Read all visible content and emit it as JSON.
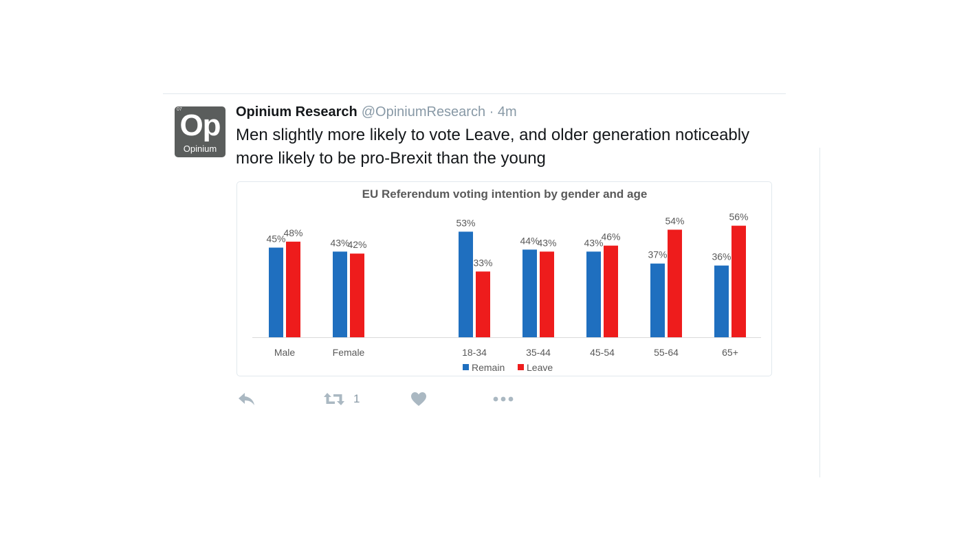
{
  "tweet": {
    "avatar": {
      "number": "07",
      "symbol": "Op",
      "name": "Opinium"
    },
    "display_name": "Opinium Research",
    "handle": "@OpiniumResearch",
    "separator": "·",
    "time": "4m",
    "text": "Men slightly more likely to vote Leave, and older generation noticeably more likely to be pro-Brexit than the young"
  },
  "actions": {
    "reply_icon": "reply-icon",
    "retweet_icon": "retweet-icon",
    "retweet_count": "1",
    "like_icon": "heart-icon",
    "more_icon": "more-icon"
  },
  "chart_data": {
    "type": "bar",
    "title": "EU Referendum voting intention by gender and age",
    "categories": [
      "Male",
      "Female",
      "18-34",
      "35-44",
      "45-54",
      "55-64",
      "65+"
    ],
    "series": [
      {
        "name": "Remain",
        "values": [
          45,
          43,
          53,
          44,
          43,
          37,
          36
        ],
        "labels": [
          "45%",
          "43%",
          "53%",
          "44%",
          "43%",
          "37%",
          "36%"
        ],
        "color": "#1f6fbf"
      },
      {
        "name": "Leave",
        "values": [
          48,
          42,
          33,
          43,
          46,
          54,
          56
        ],
        "labels": [
          "48%",
          "42%",
          "33%",
          "43%",
          "46%",
          "54%",
          "56%"
        ],
        "color": "#ee1c1c"
      }
    ],
    "ylim": [
      0,
      60
    ],
    "grid": false,
    "legend": "bottom"
  }
}
